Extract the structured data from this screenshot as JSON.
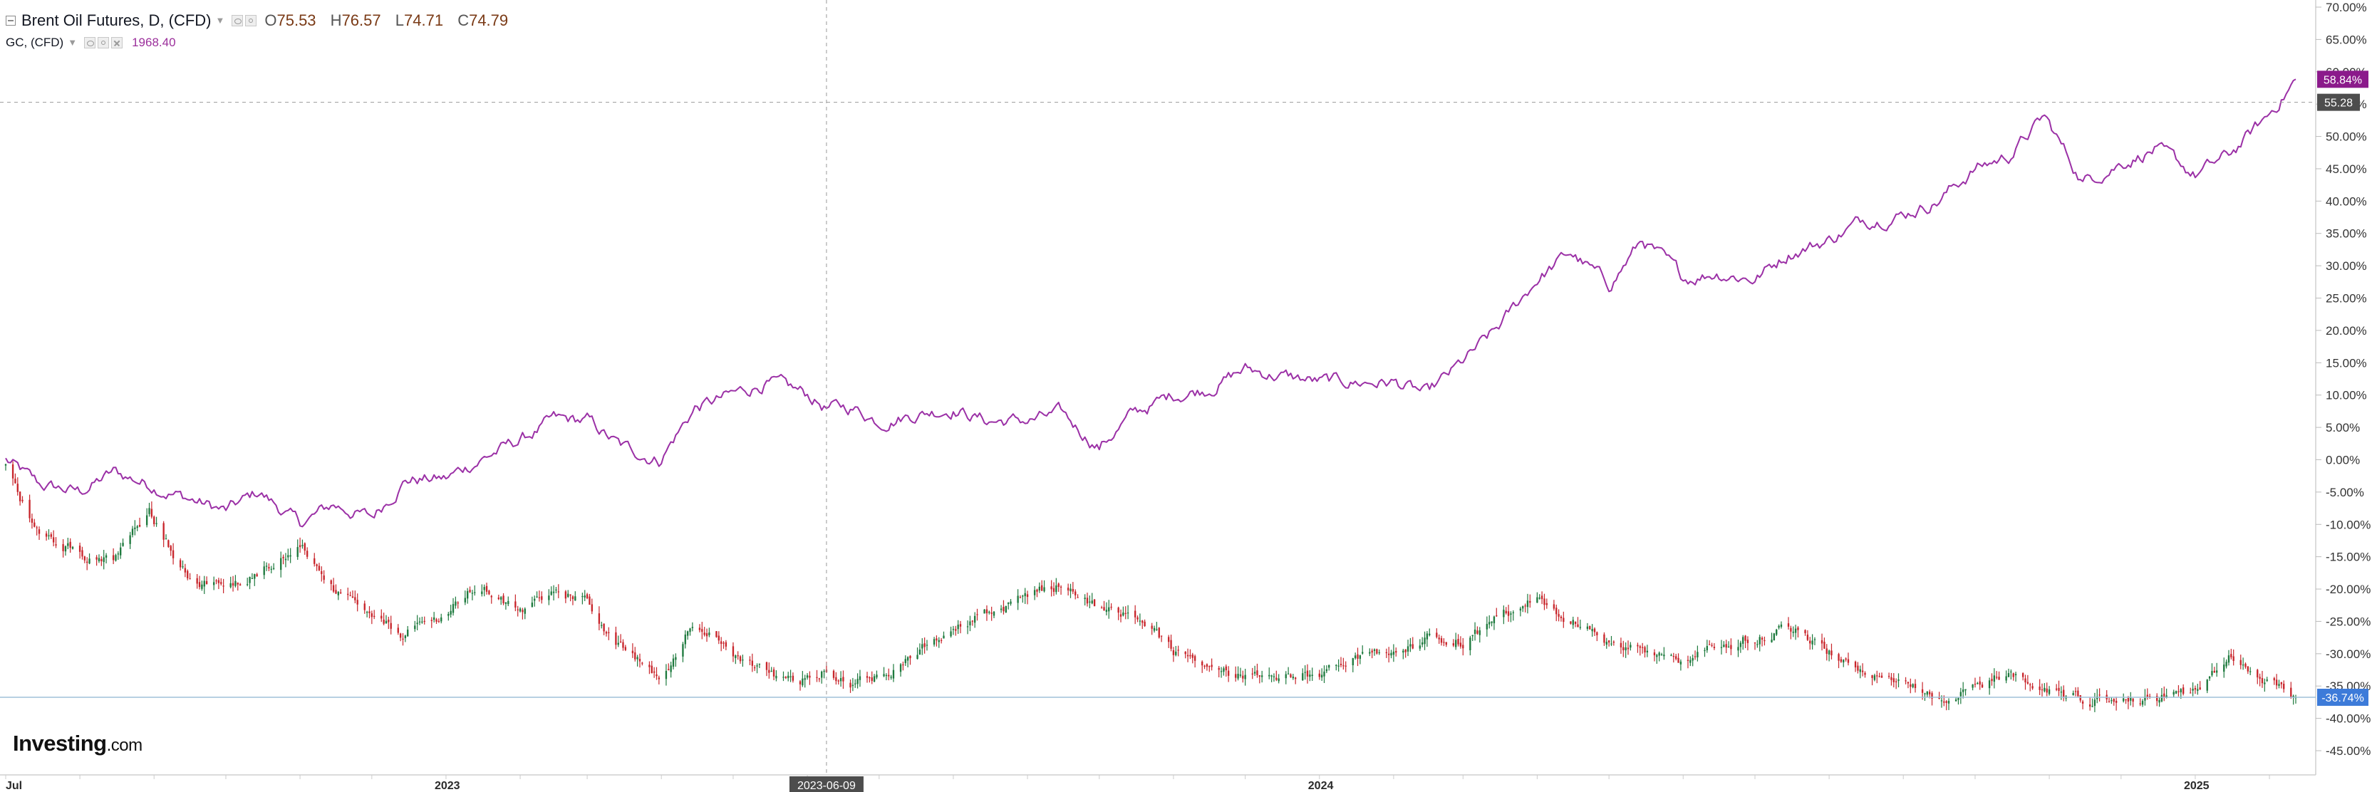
{
  "legend": {
    "symbol": "Brent Oil Futures, D, (CFD)",
    "o_key": "O",
    "o_val": "75.53",
    "h_key": "H",
    "h_val": "76.57",
    "l_key": "L",
    "l_val": "74.71",
    "c_key": "C",
    "c_val": "74.79",
    "compare_symbol": "GC, (CFD)",
    "compare_value": "1968.40"
  },
  "logo": {
    "brand": "Investing",
    "suffix": ".com"
  },
  "colors": {
    "gold_line": "#9b30a6",
    "candle_up": "#1e7a3e",
    "candle_down": "#c8252b",
    "grid": "#e6e6e6",
    "axis_text": "#333333",
    "gold_badge": "#8b1a8b",
    "brent_badge": "#3d7bd9",
    "crosshair_badge": "#4d4d4d"
  },
  "chart_data": {
    "type": "line",
    "y_unit": "%",
    "ylim": [
      -47,
      71
    ],
    "y_ticks": [
      "70.00%",
      "65.00%",
      "60.00%",
      "55.00%",
      "50.00%",
      "45.00%",
      "40.00%",
      "35.00%",
      "30.00%",
      "25.00%",
      "20.00%",
      "15.00%",
      "10.00%",
      "5.00%",
      "0.00%",
      "-5.00%",
      "-10.00%",
      "-15.00%",
      "-20.00%",
      "-25.00%",
      "-30.00%",
      "-35.00%",
      "-40.00%",
      "-45.00%"
    ],
    "y_tick_values": [
      70,
      65,
      60,
      55,
      50,
      45,
      40,
      35,
      30,
      25,
      20,
      15,
      10,
      5,
      0,
      -5,
      -10,
      -15,
      -20,
      -25,
      -30,
      -35,
      -40,
      -45
    ],
    "x_range": [
      "2022-07-01",
      "2025-02-12"
    ],
    "x_ticks": [
      "Jul",
      "2023",
      "2024",
      "2025"
    ],
    "x_tick_dates": [
      "2022-07-01",
      "2023-01-01",
      "2024-01-01",
      "2025-01-01"
    ],
    "crosshair": {
      "date_label": "2023-06-09",
      "date": "2023-06-09",
      "value": 55.28,
      "value_label": "55.28"
    },
    "last_value_labels": {
      "gold": "58.84%",
      "brent": "-36.74%"
    },
    "series": [
      {
        "kind": "line",
        "points": [
          [
            "2022-07-01",
            0
          ],
          [
            "2022-07-15",
            -4
          ],
          [
            "2022-08-01",
            -5
          ],
          [
            "2022-08-15",
            -2
          ],
          [
            "2022-09-01",
            -4
          ],
          [
            "2022-09-15",
            -6
          ],
          [
            "2022-10-01",
            -8
          ],
          [
            "2022-10-15",
            -5
          ],
          [
            "2022-11-01",
            -10
          ],
          [
            "2022-11-15",
            -7
          ],
          [
            "2022-12-01",
            -9
          ],
          [
            "2022-12-15",
            -3
          ],
          [
            "2023-01-01",
            -3
          ],
          [
            "2023-01-15",
            0
          ],
          [
            "2023-02-01",
            3
          ],
          [
            "2023-02-15",
            6
          ],
          [
            "2023-03-01",
            6
          ],
          [
            "2023-03-15",
            2
          ],
          [
            "2023-03-31",
            0
          ],
          [
            "2023-04-15",
            8
          ],
          [
            "2023-05-01",
            10
          ],
          [
            "2023-05-15",
            12
          ],
          [
            "2023-06-01",
            10
          ],
          [
            "2023-06-09",
            8
          ],
          [
            "2023-06-20",
            8
          ],
          [
            "2023-07-01",
            6
          ],
          [
            "2023-07-15",
            7
          ],
          [
            "2023-08-01",
            8
          ],
          [
            "2023-08-15",
            6
          ],
          [
            "2023-09-01",
            6
          ],
          [
            "2023-09-15",
            7
          ],
          [
            "2023-10-01",
            2
          ],
          [
            "2023-10-15",
            7
          ],
          [
            "2023-11-01",
            10
          ],
          [
            "2023-11-15",
            11
          ],
          [
            "2023-12-01",
            14
          ],
          [
            "2023-12-15",
            13
          ],
          [
            "2024-01-01",
            12
          ],
          [
            "2024-01-15",
            12
          ],
          [
            "2024-02-01",
            12
          ],
          [
            "2024-02-15",
            10
          ],
          [
            "2024-03-01",
            15
          ],
          [
            "2024-03-15",
            20
          ],
          [
            "2024-04-01",
            28
          ],
          [
            "2024-04-15",
            32
          ],
          [
            "2024-05-01",
            27
          ],
          [
            "2024-05-15",
            34
          ],
          [
            "2024-06-01",
            28
          ],
          [
            "2024-06-15",
            29
          ],
          [
            "2024-07-01",
            28
          ],
          [
            "2024-07-15",
            32
          ],
          [
            "2024-08-01",
            34
          ],
          [
            "2024-08-15",
            37
          ],
          [
            "2024-09-01",
            38
          ],
          [
            "2024-09-15",
            40
          ],
          [
            "2024-10-01",
            45
          ],
          [
            "2024-10-15",
            47
          ],
          [
            "2024-10-30",
            53
          ],
          [
            "2024-11-15",
            43
          ],
          [
            "2024-12-01",
            46
          ],
          [
            "2024-12-15",
            48
          ],
          [
            "2025-01-01",
            44
          ],
          [
            "2025-01-15",
            47
          ],
          [
            "2025-01-31",
            53
          ],
          [
            "2025-02-12",
            58.84
          ]
        ]
      },
      {
        "kind": "candlestick",
        "points": [
          [
            "2022-07-01",
            -1
          ],
          [
            "2022-07-15",
            -12
          ],
          [
            "2022-08-01",
            -14
          ],
          [
            "2022-08-15",
            -16
          ],
          [
            "2022-08-30",
            -8
          ],
          [
            "2022-09-15",
            -18
          ],
          [
            "2022-10-01",
            -20
          ],
          [
            "2022-10-15",
            -17
          ],
          [
            "2022-11-01",
            -13
          ],
          [
            "2022-11-15",
            -20
          ],
          [
            "2022-12-01",
            -25
          ],
          [
            "2022-12-15",
            -27
          ],
          [
            "2023-01-01",
            -24
          ],
          [
            "2023-01-15",
            -19
          ],
          [
            "2023-02-01",
            -24
          ],
          [
            "2023-02-15",
            -20
          ],
          [
            "2023-03-01",
            -22
          ],
          [
            "2023-03-15",
            -29
          ],
          [
            "2023-04-01",
            -34
          ],
          [
            "2023-04-15",
            -24
          ],
          [
            "2023-05-01",
            -31
          ],
          [
            "2023-05-15",
            -33
          ],
          [
            "2023-06-01",
            -34
          ],
          [
            "2023-06-09",
            -32
          ],
          [
            "2023-06-20",
            -34
          ],
          [
            "2023-07-01",
            -33
          ],
          [
            "2023-07-15",
            -31
          ],
          [
            "2023-08-01",
            -25
          ],
          [
            "2023-08-15",
            -24
          ],
          [
            "2023-09-01",
            -21
          ],
          [
            "2023-09-15",
            -19
          ],
          [
            "2023-10-01",
            -23
          ],
          [
            "2023-10-15",
            -24
          ],
          [
            "2023-11-01",
            -30
          ],
          [
            "2023-11-15",
            -32
          ],
          [
            "2023-12-01",
            -34
          ],
          [
            "2023-12-15",
            -35
          ],
          [
            "2024-01-01",
            -33
          ],
          [
            "2024-01-15",
            -31
          ],
          [
            "2024-02-01",
            -30
          ],
          [
            "2024-02-15",
            -28
          ],
          [
            "2024-03-01",
            -28
          ],
          [
            "2024-03-15",
            -25
          ],
          [
            "2024-04-01",
            -22
          ],
          [
            "2024-04-15",
            -25
          ],
          [
            "2024-05-01",
            -28
          ],
          [
            "2024-05-15",
            -29
          ],
          [
            "2024-06-01",
            -32
          ],
          [
            "2024-06-15",
            -29
          ],
          [
            "2024-07-01",
            -27
          ],
          [
            "2024-07-15",
            -26
          ],
          [
            "2024-08-01",
            -30
          ],
          [
            "2024-08-15",
            -32
          ],
          [
            "2024-09-01",
            -34
          ],
          [
            "2024-09-15",
            -38
          ],
          [
            "2024-10-01",
            -35
          ],
          [
            "2024-10-15",
            -33
          ],
          [
            "2024-11-01",
            -36
          ],
          [
            "2024-11-15",
            -37
          ],
          [
            "2024-12-01",
            -37
          ],
          [
            "2024-12-15",
            -37
          ],
          [
            "2025-01-01",
            -36
          ],
          [
            "2025-01-15",
            -31
          ],
          [
            "2025-01-31",
            -34
          ],
          [
            "2025-02-12",
            -36.74
          ]
        ]
      }
    ]
  }
}
